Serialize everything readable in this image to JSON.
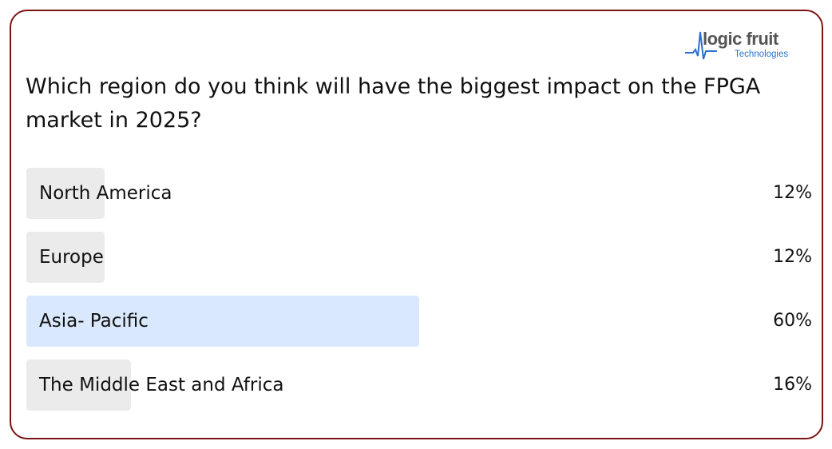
{
  "logo": {
    "name": "logic fruit",
    "subtitle": "Technologies",
    "accent": "#2d6fd0"
  },
  "question": "Which region do you think will have the biggest impact on the FPGA market in 2025?",
  "options": [
    {
      "label": "North America",
      "percent": 12,
      "percent_text": "12%"
    },
    {
      "label": "Europe",
      "percent": 12,
      "percent_text": "12%"
    },
    {
      "label": "Asia- Pacific",
      "percent": 60,
      "percent_text": "60%",
      "leading": true
    },
    {
      "label": "The Middle East and Africa",
      "percent": 16,
      "percent_text": "16%"
    }
  ],
  "colors": {
    "border": "#7a1414",
    "bar": "#ebebeb",
    "leading_bar": "#d9e8fc"
  }
}
